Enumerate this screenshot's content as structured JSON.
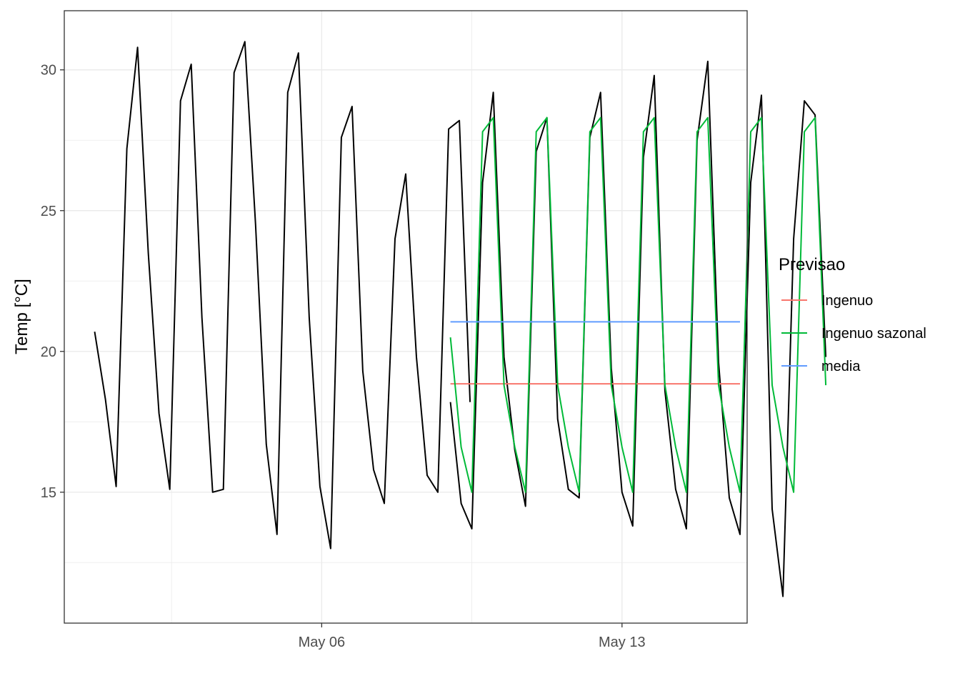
{
  "chart_data": {
    "type": "line",
    "xlabel": "",
    "ylabel": "Temp [°C]",
    "xlim": [
      "2024-04-30T00:00",
      "2024-05-15T22:00"
    ],
    "ylim": [
      10.35,
      32.1
    ],
    "x_ticks": [
      {
        "date": "2024-05-06T00:00",
        "label": "May 06"
      },
      {
        "date": "2024-05-13T00:00",
        "label": "May 13"
      }
    ],
    "y_ticks": [
      15,
      20,
      25,
      30
    ],
    "grid": true,
    "legend": {
      "title": "Previsao",
      "position": "right",
      "entries": [
        {
          "label": "Ingenuo",
          "color": "#F8766D"
        },
        {
          "label": "Ingenuo sazonal",
          "color": "#00BA38"
        },
        {
          "label": "media",
          "color": "#619CFF"
        }
      ]
    },
    "series": [
      {
        "name": "",
        "color": "#000000",
        "x_start": "2024-04-30T17:00",
        "x_end": "2024-05-08T23:00",
        "step_hours": 6,
        "values": [
          20.7,
          18.3,
          15.2,
          27.2,
          30.8,
          23.5,
          17.8,
          15.1,
          28.9,
          30.2,
          21.2,
          15.0,
          15.1,
          29.9,
          31.0,
          24.5,
          16.7,
          13.5,
          29.2,
          30.6,
          21.2,
          15.2,
          13.0,
          27.6,
          28.7,
          19.3,
          15.8,
          14.6,
          24.0,
          26.3,
          19.8,
          15.6,
          15.0,
          27.9,
          28.2,
          18.2
        ]
      },
      {
        "name": "",
        "color": "#000000",
        "x_start": "2024-05-09T00:00",
        "x_end": "2024-05-15T18:00",
        "step_hours": 6,
        "values": [
          18.2,
          14.6,
          13.7,
          26.0,
          29.2,
          19.8,
          16.5,
          14.5,
          27.1,
          28.3,
          17.6,
          15.1,
          14.8,
          27.6,
          29.2,
          19.4,
          15.0,
          13.8,
          26.9,
          29.8,
          18.6,
          15.1,
          13.7,
          27.5,
          30.3,
          19.6,
          14.8,
          13.5,
          26.0,
          29.1,
          14.4,
          11.3,
          24.0,
          28.9,
          28.4,
          19.8
        ]
      },
      {
        "name": "Ingenuo",
        "color": "#F8766D",
        "x": [
          "2024-05-09T00:00",
          "2024-05-15T18:00"
        ],
        "values": [
          18.85,
          18.85
        ]
      },
      {
        "name": "Ingenuo sazonal",
        "color": "#00BA38",
        "x_start": "2024-05-09T00:00",
        "x_end": "2024-05-15T18:00",
        "step_hours": 6,
        "values": [
          20.5,
          16.6,
          15.0,
          27.8,
          28.3,
          18.8,
          16.6,
          15.0,
          27.8,
          28.3,
          18.8,
          16.6,
          15.0,
          27.8,
          28.3,
          18.8,
          16.6,
          15.0,
          27.8,
          28.3,
          18.8,
          16.6,
          15.0,
          27.8,
          28.3,
          18.8,
          16.6,
          15.0,
          27.8,
          28.3,
          18.8,
          16.6,
          15.0,
          27.8,
          28.3,
          18.8
        ]
      },
      {
        "name": "media",
        "color": "#619CFF",
        "x": [
          "2024-05-09T00:00",
          "2024-05-15T18:00"
        ],
        "values": [
          21.05,
          21.05
        ]
      }
    ]
  }
}
